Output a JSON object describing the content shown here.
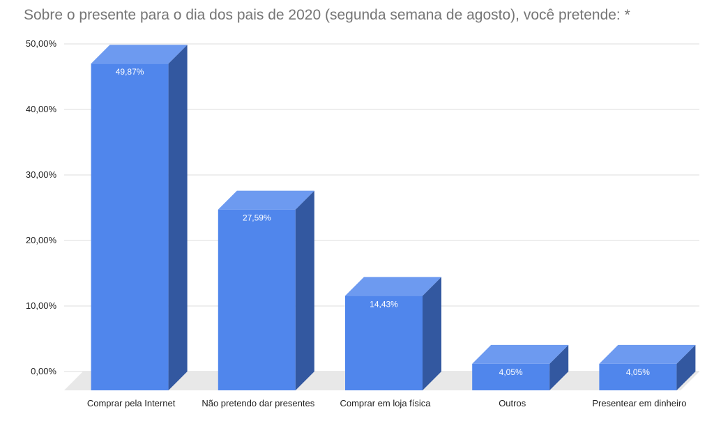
{
  "chart_data": {
    "type": "bar",
    "title": "Sobre o presente para o dia dos pais de 2020 (segunda semana de agosto), você pretende: *",
    "xlabel": "",
    "ylabel": "",
    "categories": [
      "Comprar pela Internet",
      "Não pretendo dar presentes",
      "Comprar em loja física",
      "Outros",
      "Presentear em dinheiro"
    ],
    "values": [
      49.87,
      27.59,
      14.43,
      4.05,
      4.05
    ],
    "data_labels": [
      "49,87%",
      "27,59%",
      "14,43%",
      "4,05%",
      "4,05%"
    ],
    "ylim": [
      0,
      50
    ],
    "yticks": [
      0,
      10,
      20,
      30,
      40,
      50
    ],
    "ytick_labels": [
      "0,00%",
      "10,00%",
      "20,00%",
      "30,00%",
      "40,00%",
      "50,00%"
    ],
    "grid": true,
    "legend": "none",
    "style": "3d-bar",
    "colors": {
      "bar_front": "#5086ec",
      "bar_top": "#6d9af0",
      "bar_side": "#3358a0",
      "floor": "#e8e8e8",
      "gridline": "#dddddd",
      "title": "#757575",
      "axis_text": "#222222",
      "data_label": "#ffffff"
    }
  }
}
